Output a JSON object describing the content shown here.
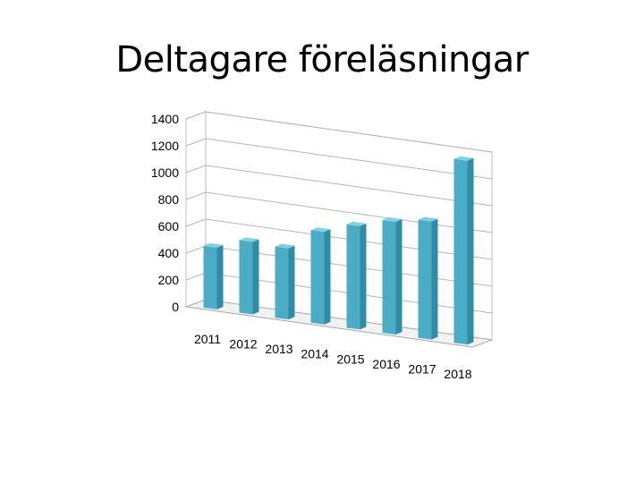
{
  "title": "Deltagare föreläsningar",
  "chart_data": {
    "type": "bar",
    "title": "Deltagare föreläsningar",
    "categories": [
      "2011",
      "2012",
      "2013",
      "2014",
      "2015",
      "2016",
      "2017",
      "2018"
    ],
    "values": [
      460,
      540,
      530,
      690,
      770,
      840,
      880,
      1370
    ],
    "ylim": [
      0,
      1400
    ],
    "yticks": [
      "0",
      "200",
      "400",
      "600",
      "800",
      "1000",
      "1200",
      "1400"
    ],
    "grid": true,
    "legend": "none",
    "bar_color": "#4bacc6",
    "bar_side_color": "#2f8ca4",
    "bar_top_color": "#7fd0e6"
  }
}
